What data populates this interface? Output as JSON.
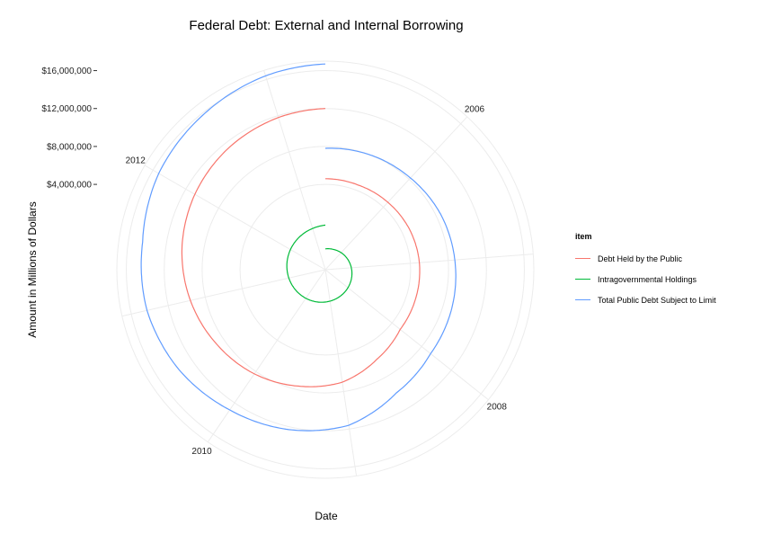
{
  "chart_data": {
    "type": "line",
    "coord": "polar",
    "title": "Federal Debt: External and Internal Borrowing",
    "xlabel": "Date",
    "ylabel": "Amount in Millions of Dollars",
    "x_ticks": [
      "2006",
      "2008",
      "2010",
      "2012"
    ],
    "y_ticks": [
      4000000,
      8000000,
      12000000,
      16000000
    ],
    "y_tick_labels": [
      "$4,000,000",
      "$8,000,000",
      "$12,000,000",
      "$16,000,000"
    ],
    "x_range": [
      2005.0,
      2013.4
    ],
    "ylim": [
      -5000000,
      17000000
    ],
    "grid": true,
    "legend": {
      "title": "item",
      "position": "right"
    },
    "series": [
      {
        "name": "Debt Held by the Public",
        "color": "#F8766D",
        "x": [
          2005.0,
          2005.5,
          2006.0,
          2006.5,
          2007.0,
          2007.5,
          2008.0,
          2008.5,
          2009.0,
          2009.5,
          2010.0,
          2010.5,
          2011.0,
          2011.5,
          2012.0,
          2012.5,
          2013.0,
          2013.4
        ],
        "y": [
          4600000,
          4580000,
          4700000,
          4850000,
          4950000,
          5000000,
          5100000,
          5900000,
          7000000,
          7600000,
          8300000,
          8900000,
          9600000,
          10300000,
          10900000,
          11400000,
          11800000,
          12000000
        ]
      },
      {
        "name": "Intragovernmental Holdings",
        "color": "#00BA38",
        "x": [
          2005.0,
          2005.5,
          2006.0,
          2006.5,
          2007.0,
          2007.5,
          2008.0,
          2008.5,
          2009.0,
          2009.5,
          2010.0,
          2010.5,
          2011.0,
          2011.5,
          2012.0,
          2012.5,
          2013.0,
          2013.4
        ],
        "y": [
          -2800000,
          -2700000,
          -2550000,
          -2400000,
          -2250000,
          -2100000,
          -1950000,
          -1800000,
          -1650000,
          -1500000,
          -1350000,
          -1200000,
          -1050000,
          -900000,
          -750000,
          -600000,
          -450000,
          -300000
        ]
      },
      {
        "name": "Total Public Debt Subject to Limit",
        "color": "#619CFF",
        "x": [
          2005.0,
          2005.5,
          2006.0,
          2006.5,
          2007.0,
          2007.5,
          2008.0,
          2008.5,
          2009.0,
          2009.5,
          2010.0,
          2010.5,
          2011.0,
          2011.5,
          2012.0,
          2012.5,
          2013.0,
          2013.4
        ],
        "y": [
          7800000,
          8000000,
          8200000,
          8500000,
          8700000,
          8950000,
          9200000,
          10000000,
          11600000,
          12300000,
          12900000,
          13700000,
          14300000,
          14500000,
          15300000,
          15800000,
          16400000,
          16700000
        ]
      }
    ]
  }
}
